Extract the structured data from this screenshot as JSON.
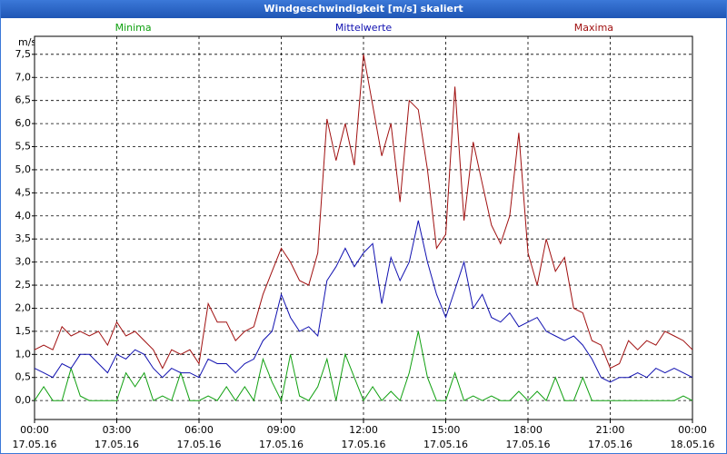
{
  "chart_data": {
    "type": "line",
    "title": "Windgeschwindigkeit [m/s] skaliert",
    "y_label": "m/s",
    "grid": true,
    "x": [
      0,
      20,
      40,
      60,
      80,
      100,
      120,
      140,
      160,
      180,
      200,
      220,
      240,
      260,
      280,
      300,
      320,
      340,
      360,
      380,
      400,
      420,
      440,
      460,
      480,
      500,
      520,
      540,
      560,
      580,
      600,
      620,
      640,
      660,
      680,
      700,
      720,
      740,
      760,
      780,
      800,
      820,
      840,
      860,
      880,
      900,
      920,
      940,
      960,
      980,
      1000,
      1020,
      1040,
      1060,
      1080,
      1100,
      1120,
      1140,
      1160,
      1180,
      1200,
      1220,
      1240,
      1260,
      1280,
      1300,
      1320,
      1340,
      1360,
      1380,
      1400,
      1420,
      1440
    ],
    "xlim": [
      0,
      1440
    ],
    "xticks": [
      {
        "value": 0,
        "label": "00:00\n17.05.16"
      },
      {
        "value": 180,
        "label": "03:00\n17.05.16"
      },
      {
        "value": 360,
        "label": "06:00\n17.05.16"
      },
      {
        "value": 540,
        "label": "09:00\n17.05.16"
      },
      {
        "value": 720,
        "label": "12:00\n17.05.16"
      },
      {
        "value": 900,
        "label": "15:00\n17.05.16"
      },
      {
        "value": 1080,
        "label": "18:00\n17.05.16"
      },
      {
        "value": 1260,
        "label": "21:00\n17.05.16"
      },
      {
        "value": 1440,
        "label": "00:00\n18.05.16"
      }
    ],
    "ylim": [
      -0.41,
      7.89
    ],
    "yticks": [
      {
        "value": 0,
        "label": "0,0"
      },
      {
        "value": 0.5,
        "label": "0,5"
      },
      {
        "value": 1,
        "label": "1,0"
      },
      {
        "value": 1.5,
        "label": "1,5"
      },
      {
        "value": 2,
        "label": "2,0"
      },
      {
        "value": 2.5,
        "label": "2,5"
      },
      {
        "value": 3,
        "label": "3,0"
      },
      {
        "value": 3.5,
        "label": "3,5"
      },
      {
        "value": 4,
        "label": "4,0"
      },
      {
        "value": 4.5,
        "label": "4,5"
      },
      {
        "value": 5,
        "label": "5,0"
      },
      {
        "value": 5.5,
        "label": "5,5"
      },
      {
        "value": 6,
        "label": "6,0"
      },
      {
        "value": 6.5,
        "label": "6,5"
      },
      {
        "value": 7,
        "label": "7,0"
      },
      {
        "value": 7.5,
        "label": "7,5"
      }
    ],
    "series": [
      {
        "name": "Minima",
        "color": "#10a010",
        "values": [
          0.0,
          0.3,
          0.0,
          0.0,
          0.7,
          0.1,
          0.0,
          0.0,
          0.0,
          0.0,
          0.6,
          0.3,
          0.6,
          0.0,
          0.1,
          0.0,
          0.6,
          0.0,
          0.0,
          0.1,
          0.0,
          0.3,
          0.0,
          0.3,
          0.0,
          0.9,
          0.4,
          0.0,
          1.0,
          0.1,
          0.0,
          0.3,
          0.9,
          0.0,
          1.0,
          0.5,
          0.0,
          0.3,
          0.0,
          0.2,
          0.0,
          0.6,
          1.5,
          0.5,
          0.0,
          0.0,
          0.6,
          0.0,
          0.1,
          0.0,
          0.1,
          0.0,
          0.0,
          0.2,
          0.0,
          0.2,
          0.0,
          0.5,
          0.0,
          0.0,
          0.5,
          0.0,
          0.0,
          0.0,
          0.0,
          0.0,
          0.0,
          0.0,
          0.0,
          0.0,
          0.0,
          0.1,
          0.0
        ]
      },
      {
        "name": "Mittelwerte",
        "color": "#1010b0",
        "values": [
          0.7,
          0.6,
          0.5,
          0.8,
          0.7,
          1.0,
          1.0,
          0.8,
          0.6,
          1.0,
          0.9,
          1.1,
          1.0,
          0.7,
          0.5,
          0.7,
          0.6,
          0.6,
          0.5,
          0.9,
          0.8,
          0.8,
          0.6,
          0.8,
          0.9,
          1.3,
          1.5,
          2.3,
          1.8,
          1.5,
          1.6,
          1.4,
          2.6,
          2.9,
          3.3,
          2.9,
          3.2,
          3.4,
          2.1,
          3.1,
          2.6,
          3.0,
          3.9,
          3.0,
          2.3,
          1.8,
          2.4,
          3.0,
          2.0,
          2.3,
          1.8,
          1.7,
          1.9,
          1.6,
          1.7,
          1.8,
          1.5,
          1.4,
          1.3,
          1.4,
          1.2,
          0.9,
          0.5,
          0.4,
          0.5,
          0.5,
          0.6,
          0.5,
          0.7,
          0.6,
          0.7,
          0.6,
          0.5
        ]
      },
      {
        "name": "Maxima",
        "color": "#a01010",
        "values": [
          1.1,
          1.2,
          1.1,
          1.6,
          1.4,
          1.5,
          1.4,
          1.5,
          1.2,
          1.7,
          1.4,
          1.5,
          1.3,
          1.1,
          0.7,
          1.1,
          1.0,
          1.1,
          0.8,
          2.1,
          1.7,
          1.7,
          1.3,
          1.5,
          1.6,
          2.3,
          2.8,
          3.3,
          3.0,
          2.6,
          2.5,
          3.2,
          6.1,
          5.2,
          6.0,
          5.1,
          7.5,
          6.4,
          5.3,
          6.0,
          4.3,
          6.5,
          6.3,
          5.0,
          3.3,
          3.6,
          6.8,
          3.9,
          5.6,
          4.7,
          3.8,
          3.4,
          4.0,
          5.8,
          3.2,
          2.5,
          3.5,
          2.8,
          3.1,
          2.0,
          1.9,
          1.3,
          1.2,
          0.7,
          0.8,
          1.3,
          1.1,
          1.3,
          1.2,
          1.5,
          1.4,
          1.3,
          1.1
        ]
      }
    ]
  }
}
